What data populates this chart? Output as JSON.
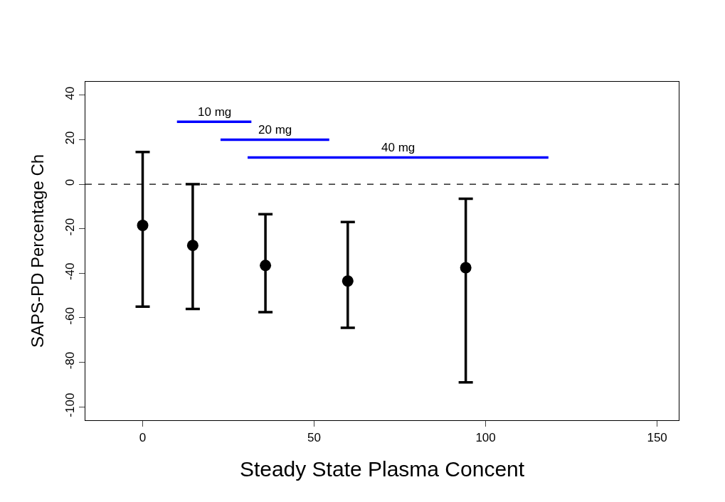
{
  "chart_data": {
    "type": "scatter",
    "xlabel": "Steady State Plasma Concent",
    "ylabel": "SAPS-PD Percentage Ch",
    "xlim": [
      -16.7,
      156.3
    ],
    "ylim": [
      -106,
      46
    ],
    "xticks": [
      0,
      50,
      100,
      150
    ],
    "yticks": [
      -100,
      -80,
      -60,
      -40,
      -20,
      0,
      20,
      40
    ],
    "legend": false,
    "marker": "circle",
    "series": [
      {
        "color": "#000000",
        "x": [
          0,
          14.6,
          35.8,
          59.8,
          94.2
        ],
        "values": [
          -18.5,
          -27.5,
          -36.5,
          -43.5,
          -37.5
        ],
        "errors": [
          [
            -55,
            14.5
          ],
          [
            -56,
            0
          ],
          [
            -57.5,
            -13.5
          ],
          [
            -64.5,
            -17
          ],
          [
            -89,
            -6.5
          ]
        ]
      },
      {
        "type": "line",
        "name": "10 mg",
        "marker": "none",
        "color": "#0000ff",
        "x": [
          10,
          31.7
        ],
        "values": [
          28,
          28
        ]
      },
      {
        "type": "line",
        "name": "20 mg",
        "marker": "none",
        "color": "#0000ff",
        "x": [
          22.7,
          54.4
        ],
        "values": [
          20,
          20
        ]
      },
      {
        "type": "line",
        "name": "40 mg",
        "marker": "none",
        "color": "#0000ff",
        "x": [
          30.6,
          118.3
        ],
        "values": [
          12,
          12
        ]
      }
    ],
    "ref_lines": [
      {
        "axis": "y",
        "value": 0,
        "line_style": "dashed",
        "color": "#000000"
      }
    ]
  }
}
